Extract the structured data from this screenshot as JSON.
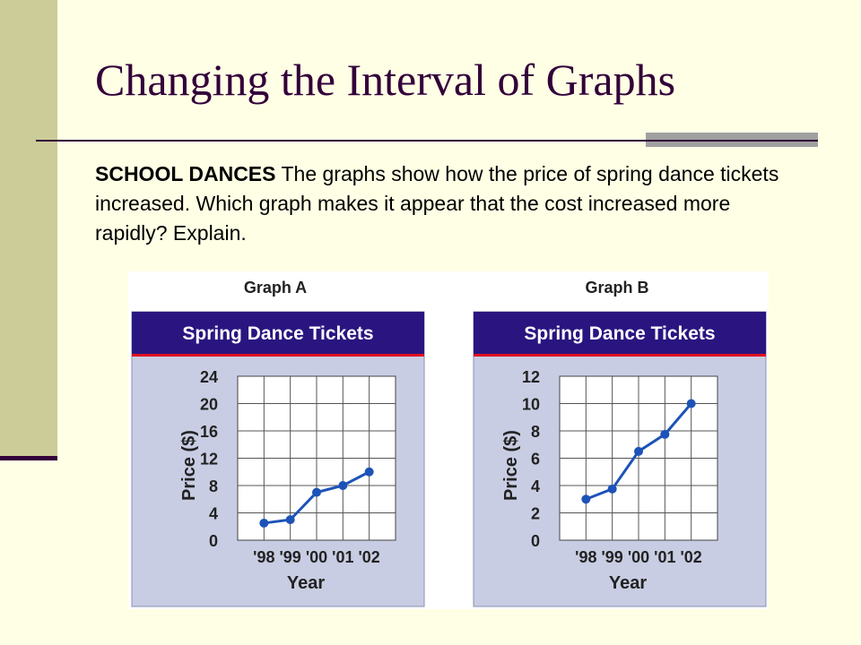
{
  "slide": {
    "title": "Changing the Interval of Graphs",
    "lead": "SCHOOL DANCES",
    "text": " The graphs show how the price of spring dance tickets increased. Which graph makes it appear that the cost increased more rapidly? Explain."
  },
  "colors": {
    "header_bar": "#2a1580",
    "header_rule": "#e01020",
    "plot_bg": "#c8cde3",
    "line": "#1d53b8",
    "title": "#33003a"
  },
  "chart_data": [
    {
      "type": "line",
      "label": "Graph A",
      "title": "Spring Dance Tickets",
      "xlabel": "Year",
      "ylabel": "Price ($)",
      "categories": [
        "'98",
        "'99",
        "'00",
        "'01",
        "'02"
      ],
      "values": [
        2.5,
        3,
        7,
        8,
        10
      ],
      "yticks": [
        0,
        4,
        8,
        12,
        16,
        20,
        24
      ],
      "ylim": [
        0,
        24
      ],
      "grid": true
    },
    {
      "type": "line",
      "label": "Graph B",
      "title": "Spring Dance Tickets",
      "xlabel": "Year",
      "ylabel": "Price ($)",
      "categories": [
        "'98",
        "'99",
        "'00",
        "'01",
        "'02"
      ],
      "values": [
        3,
        3.75,
        6.5,
        7.75,
        10
      ],
      "yticks": [
        0,
        2,
        4,
        6,
        8,
        10,
        12
      ],
      "ylim": [
        0,
        12
      ],
      "grid": true
    }
  ]
}
